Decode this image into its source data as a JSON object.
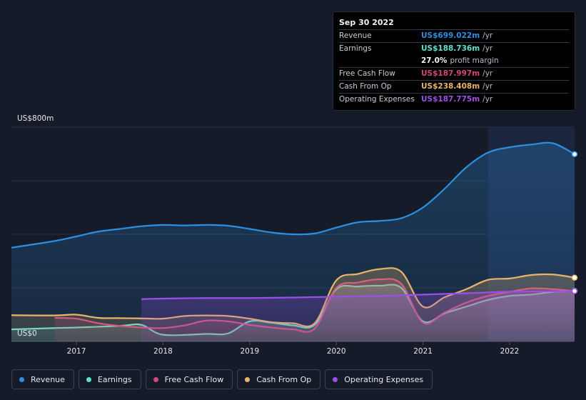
{
  "chart_data": {
    "type": "area",
    "y_axis": {
      "top_label": "US$800m",
      "bottom_label": "US$0",
      "ylim": [
        0,
        800
      ]
    },
    "x_axis": {
      "ticks": [
        "2017",
        "2018",
        "2019",
        "2020",
        "2021",
        "2022"
      ],
      "xlim": [
        2016.25,
        2022.75
      ]
    },
    "highlight_region_start": 2021.75,
    "series": [
      {
        "name": "Revenue",
        "color": "#2d8fe0",
        "points": [
          [
            2016.25,
            350
          ],
          [
            2016.75,
            375
          ],
          [
            2017.0,
            392
          ],
          [
            2017.25,
            410
          ],
          [
            2017.5,
            420
          ],
          [
            2017.75,
            430
          ],
          [
            2018.0,
            435
          ],
          [
            2018.25,
            433
          ],
          [
            2018.5,
            435
          ],
          [
            2018.75,
            432
          ],
          [
            2019.0,
            420
          ],
          [
            2019.25,
            407
          ],
          [
            2019.5,
            400
          ],
          [
            2019.75,
            403
          ],
          [
            2020.0,
            425
          ],
          [
            2020.25,
            445
          ],
          [
            2020.5,
            450
          ],
          [
            2020.75,
            460
          ],
          [
            2021.0,
            500
          ],
          [
            2021.25,
            570
          ],
          [
            2021.5,
            650
          ],
          [
            2021.75,
            705
          ],
          [
            2022.0,
            725
          ],
          [
            2022.25,
            735
          ],
          [
            2022.5,
            740
          ],
          [
            2022.75,
            699
          ]
        ]
      },
      {
        "name": "Earnings",
        "color": "#5fe1cd",
        "points": [
          [
            2016.25,
            45
          ],
          [
            2016.75,
            50
          ],
          [
            2017.0,
            52
          ],
          [
            2017.5,
            58
          ],
          [
            2017.75,
            62
          ],
          [
            2018.0,
            25
          ],
          [
            2018.5,
            28
          ],
          [
            2018.75,
            30
          ],
          [
            2019.0,
            75
          ],
          [
            2019.25,
            70
          ],
          [
            2019.5,
            60
          ],
          [
            2019.75,
            62
          ],
          [
            2020.0,
            195
          ],
          [
            2020.25,
            205
          ],
          [
            2020.5,
            208
          ],
          [
            2020.75,
            200
          ],
          [
            2021.0,
            75
          ],
          [
            2021.25,
            105
          ],
          [
            2021.5,
            130
          ],
          [
            2021.75,
            155
          ],
          [
            2022.0,
            170
          ],
          [
            2022.25,
            175
          ],
          [
            2022.5,
            185
          ],
          [
            2022.75,
            189
          ]
        ]
      },
      {
        "name": "Free Cash Flow",
        "color": "#d1467f",
        "points": [
          [
            2016.75,
            88
          ],
          [
            2017.0,
            85
          ],
          [
            2017.25,
            68
          ],
          [
            2017.5,
            58
          ],
          [
            2017.75,
            52
          ],
          [
            2018.0,
            50
          ],
          [
            2018.25,
            60
          ],
          [
            2018.5,
            78
          ],
          [
            2018.75,
            75
          ],
          [
            2019.0,
            62
          ],
          [
            2019.25,
            52
          ],
          [
            2019.5,
            45
          ],
          [
            2019.75,
            48
          ],
          [
            2020.0,
            200
          ],
          [
            2020.25,
            220
          ],
          [
            2020.5,
            232
          ],
          [
            2020.75,
            215
          ],
          [
            2021.0,
            70
          ],
          [
            2021.25,
            108
          ],
          [
            2021.5,
            145
          ],
          [
            2021.75,
            170
          ],
          [
            2022.0,
            185
          ],
          [
            2022.25,
            198
          ],
          [
            2022.5,
            195
          ],
          [
            2022.75,
            188
          ]
        ]
      },
      {
        "name": "Cash From Op",
        "color": "#e8b56b",
        "points": [
          [
            2016.25,
            98
          ],
          [
            2016.75,
            97
          ],
          [
            2017.0,
            100
          ],
          [
            2017.25,
            88
          ],
          [
            2017.5,
            87
          ],
          [
            2017.75,
            86
          ],
          [
            2018.0,
            85
          ],
          [
            2018.25,
            95
          ],
          [
            2018.5,
            97
          ],
          [
            2018.75,
            95
          ],
          [
            2019.0,
            85
          ],
          [
            2019.25,
            72
          ],
          [
            2019.5,
            68
          ],
          [
            2019.75,
            68
          ],
          [
            2020.0,
            228
          ],
          [
            2020.25,
            252
          ],
          [
            2020.5,
            270
          ],
          [
            2020.75,
            260
          ],
          [
            2021.0,
            130
          ],
          [
            2021.25,
            165
          ],
          [
            2021.5,
            195
          ],
          [
            2021.75,
            230
          ],
          [
            2022.0,
            235
          ],
          [
            2022.25,
            248
          ],
          [
            2022.5,
            250
          ],
          [
            2022.75,
            238
          ]
        ]
      },
      {
        "name": "Operating Expenses",
        "color": "#9c4fe8",
        "points": [
          [
            2017.75,
            158
          ],
          [
            2018.0,
            160
          ],
          [
            2018.5,
            162
          ],
          [
            2019.0,
            162
          ],
          [
            2019.5,
            164
          ],
          [
            2020.0,
            167
          ],
          [
            2020.5,
            170
          ],
          [
            2021.0,
            175
          ],
          [
            2021.5,
            180
          ],
          [
            2021.75,
            183
          ],
          [
            2022.0,
            186
          ],
          [
            2022.5,
            187
          ],
          [
            2022.75,
            188
          ]
        ]
      }
    ]
  },
  "tooltip": {
    "date": "Sep 30 2022",
    "rows": [
      {
        "label": "Revenue",
        "value": "US$699.022m",
        "unit": "/yr",
        "color": "#2d8fe0"
      },
      {
        "label": "Earnings",
        "value": "US$188.736m",
        "unit": "/yr",
        "color": "#5fe1cd"
      },
      {
        "label": "",
        "value": "27.0%",
        "unit": "profit margin",
        "color": "#f5f5f5"
      },
      {
        "label": "Free Cash Flow",
        "value": "US$187.997m",
        "unit": "/yr",
        "color": "#d1467f"
      },
      {
        "label": "Cash From Op",
        "value": "US$238.408m",
        "unit": "/yr",
        "color": "#e8b56b"
      },
      {
        "label": "Operating Expenses",
        "value": "US$187.775m",
        "unit": "/yr",
        "color": "#9c4fe8"
      }
    ]
  },
  "legend": [
    {
      "label": "Revenue",
      "color": "#2d8fe0"
    },
    {
      "label": "Earnings",
      "color": "#5fe1cd"
    },
    {
      "label": "Free Cash Flow",
      "color": "#d1467f"
    },
    {
      "label": "Cash From Op",
      "color": "#e8b56b"
    },
    {
      "label": "Operating Expenses",
      "color": "#9c4fe8"
    }
  ]
}
